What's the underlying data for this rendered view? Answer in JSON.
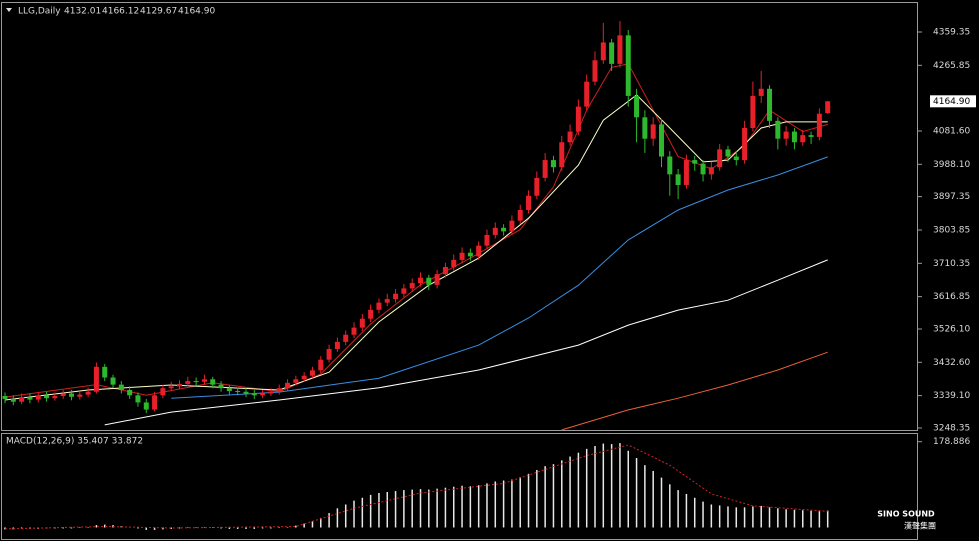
{
  "chart_data": [
    {
      "type": "candlestick",
      "title": "LLG,Daily",
      "ohlc_labels": [
        "4132.01",
        "4166.12",
        "4129.67",
        "4164.90"
      ],
      "up_color": "#e8202a",
      "down_color": "#2db82d",
      "open": [
        3338,
        3330,
        3322,
        3335,
        3328,
        3340,
        3332,
        3338,
        3345,
        3336,
        3342,
        3350,
        3420,
        3390,
        3370,
        3355,
        3340,
        3320,
        3300,
        3340,
        3360,
        3365,
        3372,
        3380,
        3378,
        3385,
        3370,
        3360,
        3352,
        3350,
        3345,
        3340,
        3345,
        3350,
        3360,
        3375,
        3385,
        3395,
        3410,
        3440,
        3470,
        3490,
        3510,
        3530,
        3555,
        3580,
        3600,
        3610,
        3625,
        3640,
        3655,
        3670,
        3650,
        3680,
        3700,
        3720,
        3740,
        3730,
        3760,
        3790,
        3810,
        3800,
        3830,
        3860,
        3900,
        3950,
        4000,
        3980,
        4050,
        4080,
        4150,
        4220,
        4280,
        4330,
        4270,
        4350,
        4180,
        4120,
        4060,
        4100,
        4010,
        3960,
        3930,
        4000,
        3990,
        3960,
        3980,
        4030,
        4010,
        4000,
        4090,
        4180,
        4200,
        4110,
        4060,
        4080,
        4050,
        4070,
        4065,
        4132.01
      ],
      "high": [
        3348,
        3340,
        3345,
        3345,
        3350,
        3350,
        3348,
        3355,
        3355,
        3352,
        3362,
        3432,
        3428,
        3398,
        3380,
        3365,
        3348,
        3330,
        3350,
        3370,
        3378,
        3382,
        3392,
        3390,
        3398,
        3392,
        3380,
        3368,
        3362,
        3360,
        3355,
        3355,
        3360,
        3370,
        3385,
        3395,
        3405,
        3420,
        3450,
        3482,
        3502,
        3522,
        3545,
        3568,
        3595,
        3612,
        3625,
        3638,
        3652,
        3668,
        3685,
        3678,
        3692,
        3712,
        3735,
        3755,
        3752,
        3772,
        3805,
        3825,
        3820,
        3845,
        3875,
        3915,
        3968,
        4020,
        4012,
        4068,
        4100,
        4170,
        4240,
        4305,
        4385,
        4340,
        4390,
        4365,
        4200,
        4140,
        4120,
        4115,
        4025,
        3975,
        4015,
        4012,
        4000,
        3995,
        4045,
        4040,
        4025,
        4110,
        4220,
        4250,
        4210,
        4120,
        4095,
        4090,
        4085,
        4080,
        4145,
        4166.12
      ],
      "low": [
        3318,
        3312,
        3315,
        3318,
        3320,
        3322,
        3325,
        3330,
        3326,
        3328,
        3335,
        3345,
        3380,
        3360,
        3345,
        3330,
        3308,
        3290,
        3295,
        3332,
        3352,
        3358,
        3365,
        3368,
        3370,
        3360,
        3350,
        3342,
        3340,
        3335,
        3330,
        3332,
        3338,
        3342,
        3352,
        3368,
        3378,
        3388,
        3402,
        3432,
        3462,
        3480,
        3500,
        3520,
        3545,
        3570,
        3590,
        3600,
        3615,
        3630,
        3645,
        3635,
        3640,
        3670,
        3690,
        3710,
        3718,
        3720,
        3750,
        3780,
        3788,
        3790,
        3820,
        3850,
        3890,
        3940,
        3965,
        3970,
        4040,
        4070,
        4140,
        4210,
        4270,
        4250,
        4260,
        4150,
        4050,
        4020,
        4040,
        3980,
        3900,
        3890,
        3920,
        3970,
        3940,
        3945,
        3970,
        3995,
        3985,
        3990,
        4080,
        4160,
        4090,
        4030,
        4040,
        4030,
        4040,
        4045,
        4055,
        4129.67
      ],
      "close": [
        3330,
        3322,
        3335,
        3328,
        3340,
        3332,
        3338,
        3345,
        3336,
        3342,
        3350,
        3420,
        3390,
        3370,
        3355,
        3340,
        3320,
        3300,
        3340,
        3360,
        3365,
        3372,
        3380,
        3378,
        3385,
        3370,
        3360,
        3352,
        3350,
        3345,
        3340,
        3345,
        3350,
        3360,
        3375,
        3385,
        3395,
        3410,
        3440,
        3470,
        3490,
        3510,
        3530,
        3555,
        3580,
        3600,
        3610,
        3625,
        3640,
        3655,
        3670,
        3650,
        3680,
        3700,
        3720,
        3740,
        3730,
        3760,
        3790,
        3810,
        3800,
        3830,
        3860,
        3900,
        3950,
        4000,
        3980,
        4050,
        4080,
        4150,
        4220,
        4280,
        4330,
        4270,
        4350,
        4180,
        4120,
        4060,
        4100,
        4010,
        3960,
        3930,
        4000,
        3990,
        3960,
        3980,
        4030,
        4010,
        4000,
        4090,
        4180,
        4200,
        4110,
        4060,
        4080,
        4050,
        4070,
        4065,
        4130,
        4164.9
      ],
      "lines": [
        {
          "color": "#d02020",
          "x": [
            0,
            11,
            17,
            25,
            33,
            38,
            44,
            50,
            56,
            62,
            66,
            70,
            73,
            75,
            78,
            81,
            85,
            89,
            92,
            96,
            99
          ],
          "values": [
            3335,
            3370,
            3340,
            3375,
            3350,
            3400,
            3540,
            3650,
            3725,
            3805,
            3925,
            4140,
            4260,
            4270,
            4140,
            4010,
            3975,
            4040,
            4140,
            4080,
            4100
          ]
        },
        {
          "color": "#ffffc8",
          "x": [
            0,
            10,
            20,
            33,
            39,
            45,
            51,
            57,
            63,
            69,
            72,
            76,
            80,
            84,
            87,
            91,
            94,
            99
          ],
          "values": [
            3327,
            3355,
            3369,
            3355,
            3405,
            3546,
            3649,
            3725,
            3837,
            3986,
            4112,
            4183,
            4090,
            3995,
            4000,
            4090,
            4107,
            4107
          ]
        },
        {
          "color": "#3a8ee0",
          "x": [
            20,
            33,
            45,
            57,
            63,
            69,
            75,
            81,
            87,
            93,
            99
          ],
          "values": [
            3332,
            3349,
            3388,
            3481,
            3557,
            3649,
            3776,
            3860,
            3916,
            3958,
            4009
          ]
        },
        {
          "color": "#ffffff",
          "x": [
            12,
            20,
            33,
            45,
            57,
            69,
            75,
            81,
            87,
            93,
            99
          ],
          "values": [
            3257,
            3293,
            3327,
            3361,
            3411,
            3481,
            3537,
            3579,
            3607,
            3663,
            3720
          ]
        },
        {
          "color": "#e8603a",
          "x": [
            67,
            75,
            81,
            87,
            93,
            99
          ],
          "values": [
            3243,
            3299,
            3332,
            3369,
            3411,
            3461
          ]
        }
      ],
      "ylim": [
        3242.7,
        4437.9
      ],
      "yticks": [
        4359.35,
        4265.85,
        {
          "value": 4081.6,
          "label": "4081.60"
        },
        {
          "value": 3988.1,
          "label": "3988.10"
        },
        3897.35,
        3803.85,
        3710.35,
        3616.85,
        {
          "value": 3526.1,
          "label": "3526.10"
        },
        {
          "value": 3432.6,
          "label": "3432.60"
        },
        {
          "value": 3339.1,
          "label": "3339.10"
        },
        3248.35
      ],
      "current_price": {
        "value": 4164.9,
        "label": "4164.90"
      }
    },
    {
      "type": "macd",
      "title": "MACD(12,26,9) 35.407 33.872",
      "color": "#e8e8e8",
      "values": [
        -4,
        -4,
        -3,
        -3,
        -3,
        -2,
        -2,
        -2,
        -2,
        -1,
        0,
        5,
        6,
        5,
        3,
        1,
        -2,
        -5,
        -5,
        -4,
        -3,
        -2,
        -1,
        -1,
        0,
        -1,
        -2,
        -3,
        -3,
        -3,
        -3,
        -2,
        -2,
        -1,
        1,
        4,
        8,
        13,
        20,
        30,
        40,
        48,
        56,
        62,
        68,
        72,
        74,
        76,
        78,
        79,
        80,
        79,
        81,
        83,
        85,
        87,
        86,
        88,
        92,
        96,
        98,
        100,
        105,
        112,
        120,
        128,
        132,
        140,
        148,
        156,
        164,
        170,
        175,
        174,
        176,
        160,
        145,
        130,
        118,
        104,
        90,
        78,
        70,
        62,
        54,
        48,
        46,
        44,
        42,
        42,
        44,
        45,
        42,
        40,
        38,
        37,
        36,
        35,
        34,
        35.407
      ],
      "signal": {
        "color": "#d02020",
        "x": [
          0,
          12,
          20,
          35,
          42,
          50,
          60,
          70,
          75,
          80,
          85,
          90,
          99
        ],
        "values": [
          -3,
          2,
          -1,
          2,
          40,
          72,
          92,
          150,
          172,
          130,
          70,
          45,
          33.872
        ]
      },
      "ylim": [
        -24,
        195
      ],
      "yticks": [
        178.886
      ]
    }
  ],
  "logo": {
    "title": "SINO SOUND",
    "subtitle": "漢聲集團"
  }
}
